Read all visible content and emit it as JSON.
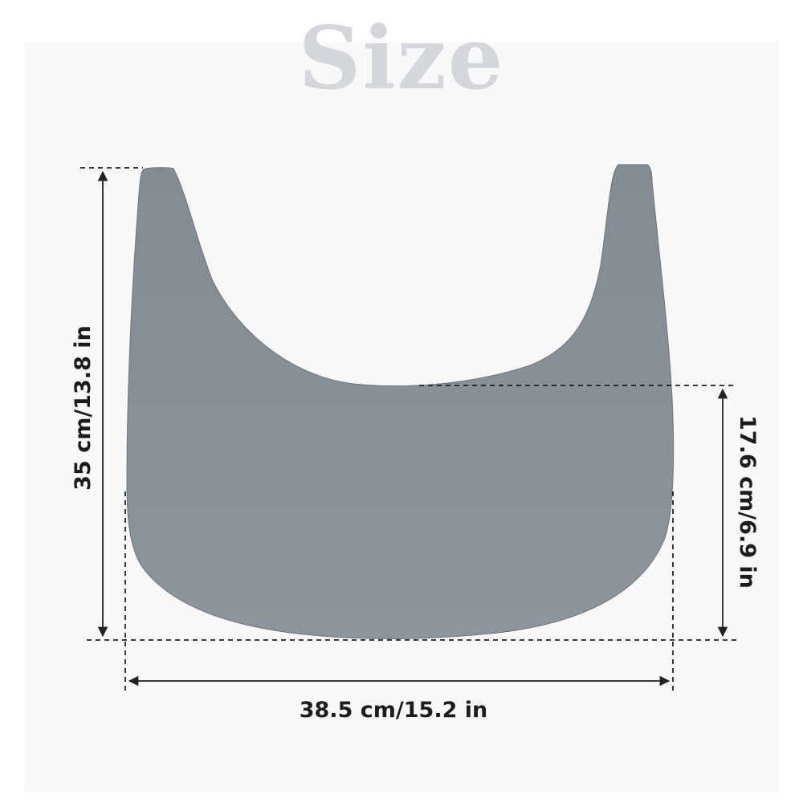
{
  "title": "Size",
  "dimensions": {
    "height": "35 cm/13.8 in",
    "brim_depth": "17.6 cm/6.9 in",
    "width": "38.5 cm/15.2 in"
  },
  "colors": {
    "visor": "#8a9099",
    "title": "#d3d6da",
    "background": "#f8f8f8",
    "lines": "#222222"
  }
}
